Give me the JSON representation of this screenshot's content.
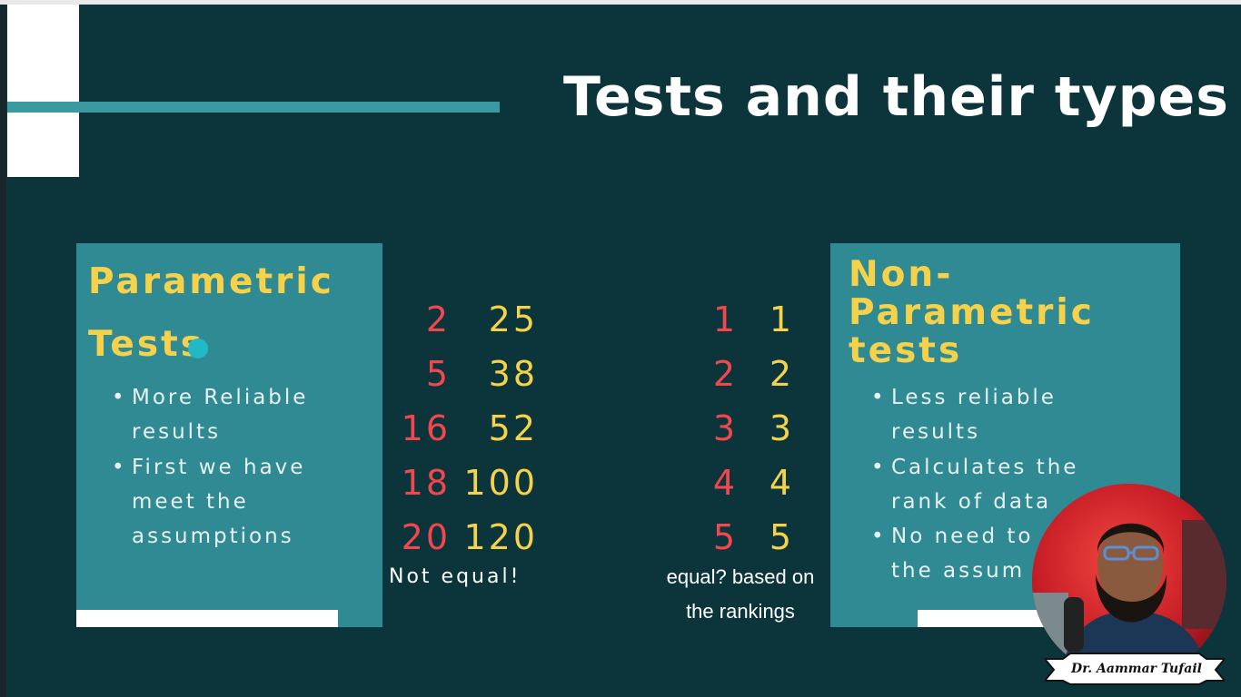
{
  "slide": {
    "title": "Tests and their types",
    "left_panel": {
      "heading_line1": "Parametric",
      "heading_line2": "Tests",
      "bullets": [
        {
          "line1": "More Reliable",
          "line2": "results"
        },
        {
          "line1": "First we have",
          "line2": "meet the",
          "line3": "assumptions"
        }
      ]
    },
    "right_panel": {
      "heading_line1": "Non-",
      "heading_line2": "Parametric",
      "heading_line3": "tests",
      "bullets": [
        {
          "line1": "Less reliable",
          "line2": "results"
        },
        {
          "line1": "Calculates the",
          "line2": "rank of data"
        },
        {
          "line1": "No need to",
          "line2": "the assum"
        }
      ]
    },
    "left_numbers": {
      "col_a": [
        "2",
        "5",
        "16",
        "18",
        "20"
      ],
      "col_b": [
        "25",
        "38",
        "52",
        "100",
        "120"
      ],
      "note": "Not equal!"
    },
    "right_numbers": {
      "col_a": [
        "1",
        "2",
        "3",
        "4",
        "5"
      ],
      "col_b": [
        "1",
        "2",
        "3",
        "4",
        "5"
      ],
      "note_line1": "equal? based on",
      "note_line2": "the rankings"
    },
    "colors": {
      "background": "#0c343b",
      "panel": "#2f8a94",
      "heading": "#f6d24a",
      "red_number": "#f2474e",
      "yellow_number": "#f4d34a",
      "accent_line": "#3a9aa0"
    }
  },
  "presenter": {
    "signature": "Dr. Aammar Tufail"
  }
}
